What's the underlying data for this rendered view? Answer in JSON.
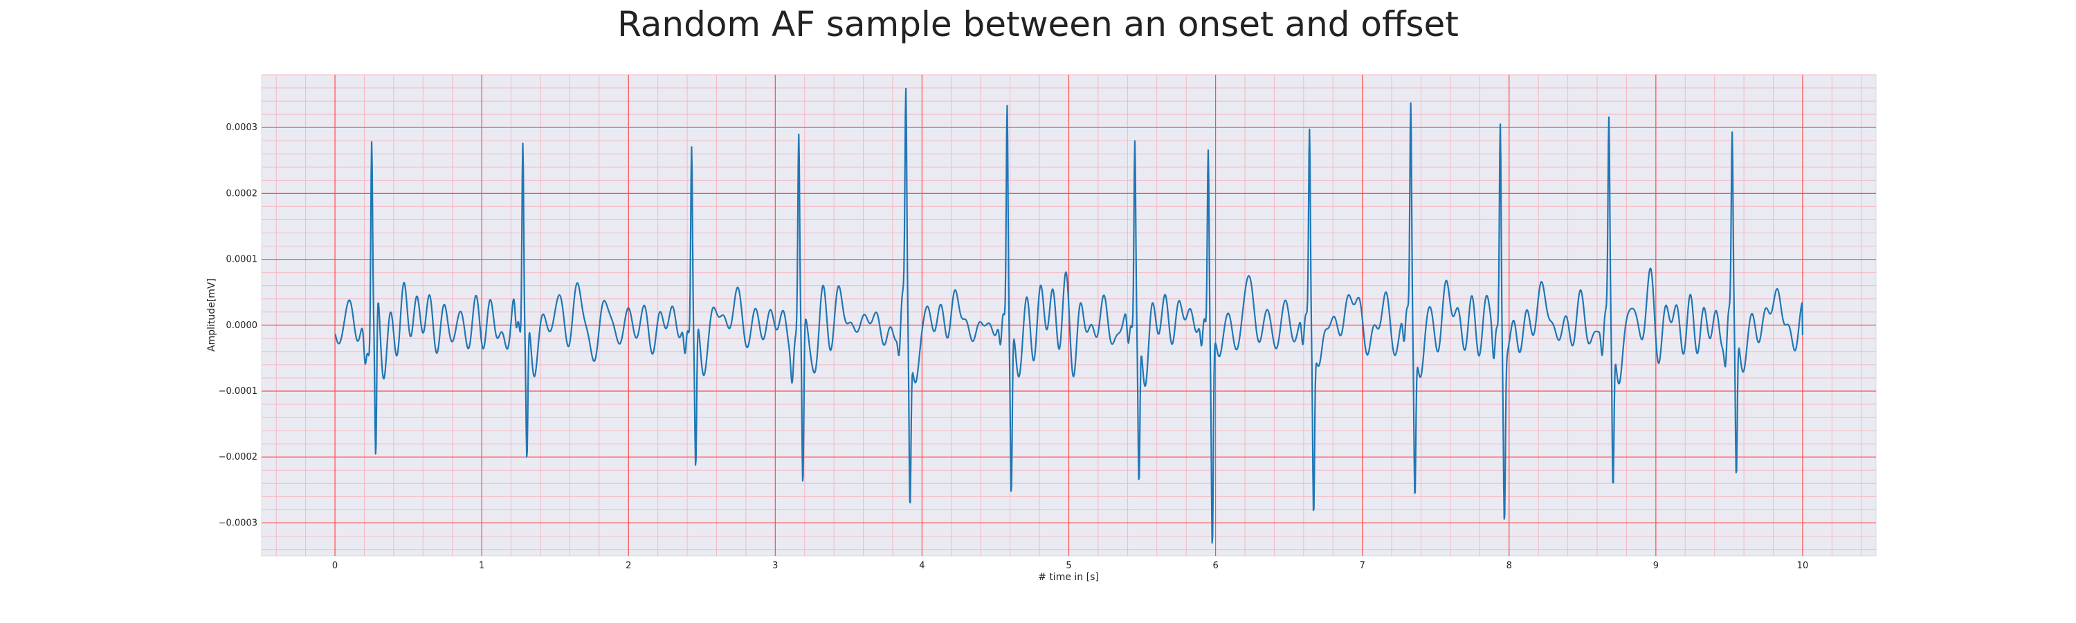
{
  "chart_data": {
    "type": "line",
    "title": "Random AF sample between an onset and offset",
    "xlabel": "# time in [s]",
    "ylabel": "Amplitude[mV]",
    "xlim": [
      -0.5,
      10.5
    ],
    "ylim": [
      -0.00035,
      0.00038
    ],
    "x_ticks": [
      0,
      1,
      2,
      3,
      4,
      5,
      6,
      7,
      8,
      9,
      10
    ],
    "y_ticks": [
      -0.0003,
      -0.0002,
      -0.0001,
      0.0,
      0.0001,
      0.0002,
      0.0003
    ],
    "x_tick_labels": [
      "0",
      "1",
      "2",
      "3",
      "4",
      "5",
      "6",
      "7",
      "8",
      "9",
      "10"
    ],
    "y_tick_labels": [
      "−0.0003",
      "−0.0002",
      "−0.0001",
      "0.0000",
      "0.0001",
      "0.0002",
      "0.0003"
    ],
    "grid": true,
    "minor_grid": true,
    "colors": {
      "background": "#eaeaf2",
      "major_grid": "#ff4d4d",
      "minor_grid": "#f4b8c3",
      "line": "#1f77b4",
      "spine": "#d8d8e0"
    },
    "series": [
      {
        "name": "",
        "r_peaks": [
          {
            "t": 0.25,
            "peak": 0.00032,
            "trough": -0.00026
          },
          {
            "t": 1.28,
            "peak": 0.000315,
            "trough": -0.00022
          },
          {
            "t": 2.43,
            "peak": 0.000305,
            "trough": -0.00023
          },
          {
            "t": 3.16,
            "peak": 0.0003,
            "trough": -0.000265
          },
          {
            "t": 3.89,
            "peak": 0.000325,
            "trough": -0.00026
          },
          {
            "t": 4.58,
            "peak": 0.000352,
            "trough": -0.00026
          },
          {
            "t": 5.45,
            "peak": 0.0003,
            "trough": -0.000245
          },
          {
            "t": 5.95,
            "peak": 0.000302,
            "trough": -0.00032
          },
          {
            "t": 6.64,
            "peak": 0.000307,
            "trough": -0.000265
          },
          {
            "t": 7.33,
            "peak": 0.000337,
            "trough": -0.000242
          },
          {
            "t": 7.94,
            "peak": 0.000337,
            "trough": -0.000258
          },
          {
            "t": 8.68,
            "peak": 0.000303,
            "trough": -0.000242
          },
          {
            "t": 9.52,
            "peak": 0.00028,
            "trough": -0.000235
          }
        ],
        "t_start": 0.0,
        "t_end": 10.0,
        "value_start": -1.5e-05,
        "value_end": -1.5e-05
      }
    ]
  }
}
